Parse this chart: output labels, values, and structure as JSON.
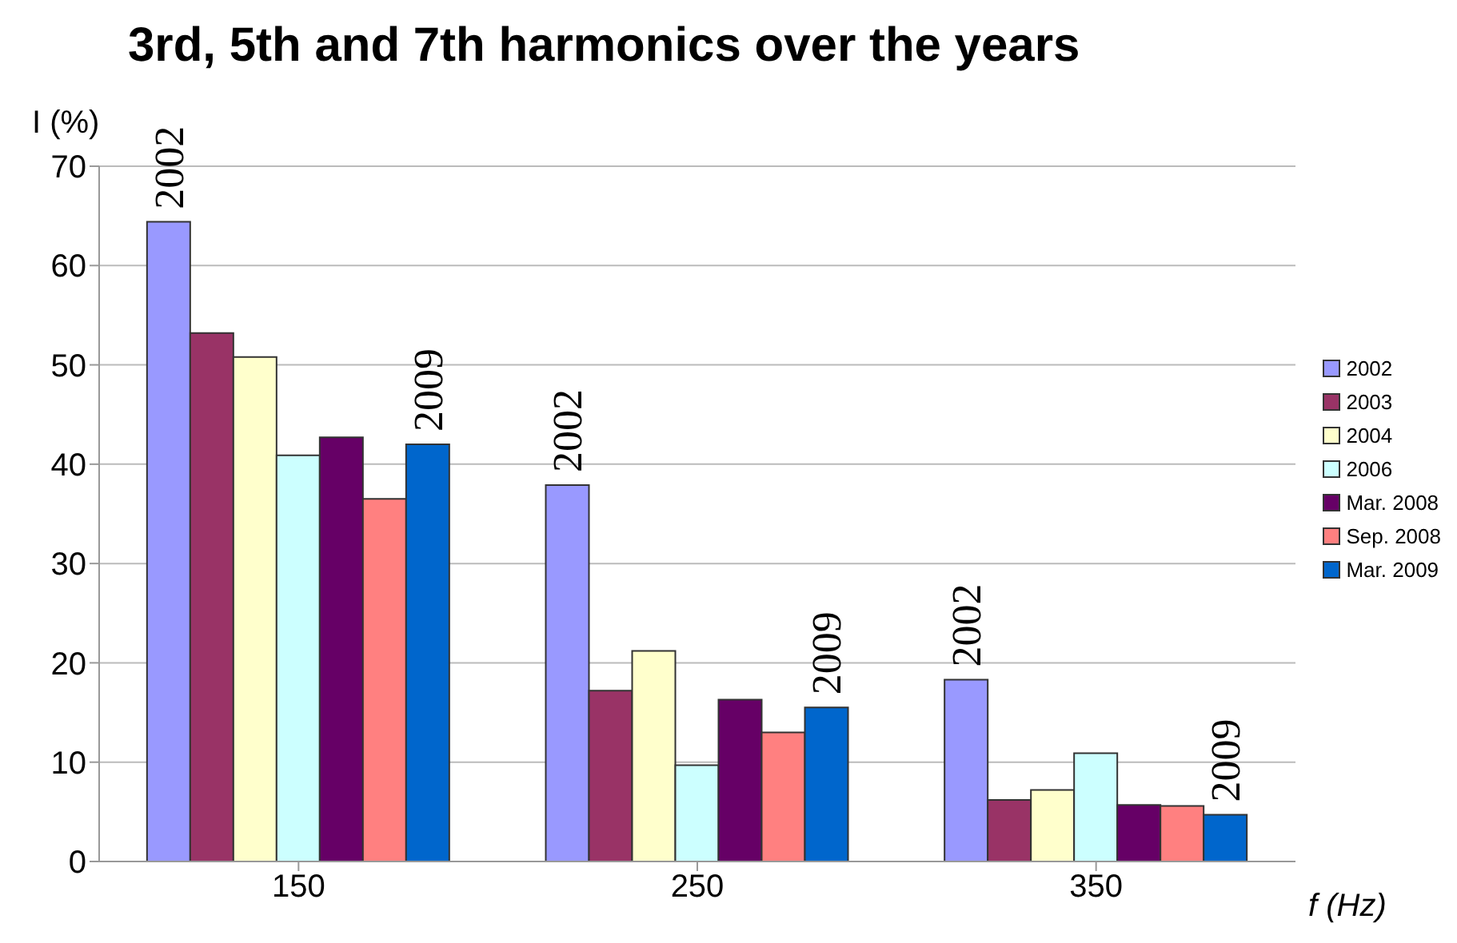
{
  "chart_data": {
    "type": "bar",
    "title": "3rd, 5th and 7th harmonics over the years",
    "xlabel": "f (Hz)",
    "ylabel": "I (%)",
    "categories": [
      "150",
      "250",
      "350"
    ],
    "series": [
      {
        "name": "2002",
        "color": "#9999ff",
        "values": [
          64.4,
          37.9,
          18.3
        ]
      },
      {
        "name": "2003",
        "color": "#993366",
        "values": [
          53.2,
          17.2,
          6.2
        ]
      },
      {
        "name": "2004",
        "color": "#ffffcc",
        "values": [
          50.8,
          21.2,
          7.2
        ]
      },
      {
        "name": "2006",
        "color": "#ccffff",
        "values": [
          40.9,
          9.7,
          10.9
        ]
      },
      {
        "name": "Mar. 2008",
        "color": "#660066",
        "values": [
          42.7,
          16.3,
          5.7
        ]
      },
      {
        "name": "Sep. 2008",
        "color": "#ff8080",
        "values": [
          36.5,
          13.0,
          5.6
        ]
      },
      {
        "name": "Mar. 2009",
        "color": "#0066cc",
        "values": [
          42.0,
          15.5,
          4.7
        ]
      }
    ],
    "annotations": [
      "2002",
      "2009",
      "2002",
      "2009",
      "2002",
      "2009"
    ],
    "ylim": [
      0,
      70
    ],
    "yticks": [
      0,
      10,
      20,
      30,
      40,
      50,
      60,
      70
    ],
    "grid": "y",
    "legend": "right"
  }
}
